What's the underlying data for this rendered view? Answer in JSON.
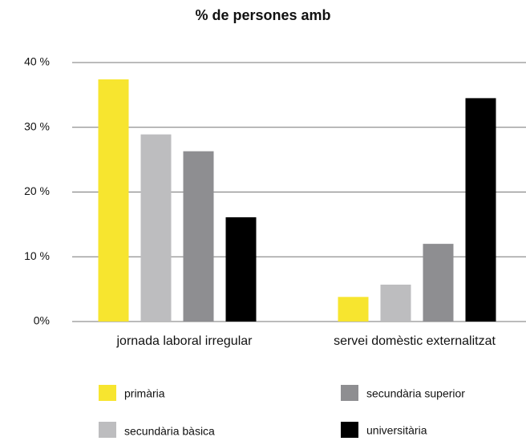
{
  "chart_data": {
    "type": "bar",
    "title": "% de persones amb",
    "categories": [
      "jornada laboral irregular",
      "servei domèstic externalitzat"
    ],
    "series": [
      {
        "name": "primària",
        "color": "#f7e52f",
        "values": [
          37.4,
          3.8
        ]
      },
      {
        "name": "secundària bàsica",
        "color": "#bdbdbf",
        "values": [
          28.9,
          5.7
        ]
      },
      {
        "name": "secundària superior",
        "color": "#8e8e91",
        "values": [
          26.3,
          12.0
        ]
      },
      {
        "name": "universitària",
        "color": "#000000",
        "values": [
          16.1,
          34.5
        ]
      }
    ],
    "ylim": [
      0,
      40
    ],
    "yticks": [
      {
        "value": 0,
        "label": "0%"
      },
      {
        "value": 10,
        "label": "10 %"
      },
      {
        "value": 20,
        "label": "20 %"
      },
      {
        "value": 30,
        "label": "30 %"
      },
      {
        "value": 40,
        "label": "40 %"
      }
    ],
    "grid": true,
    "legend": "bottom"
  }
}
